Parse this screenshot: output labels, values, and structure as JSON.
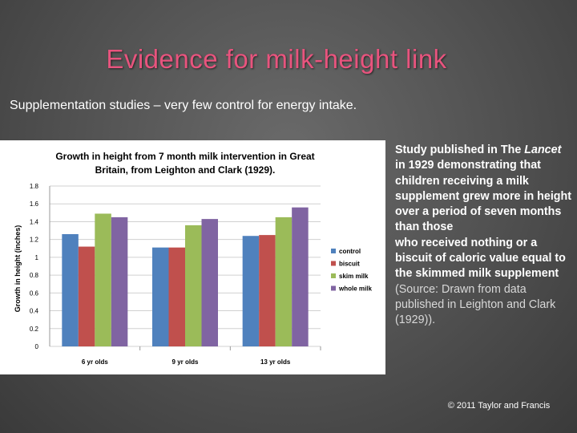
{
  "slide": {
    "title": "Evidence for milk-height link",
    "subtitle": "Supplementation studies – very few control for energy intake.",
    "side_text": {
      "line1": "Study published in The",
      "italic": "Lancet",
      "line2": " in 1929 demonstrating that children receiving a milk supplement grew more in height over a period of seven months than those",
      "line3": "who received nothing or a biscuit of caloric value equal to the skimmed milk supplement",
      "source": "(Source: Drawn from data published in Leighton and Clark (1929))."
    },
    "copyright": "© 2011 Taylor and Francis"
  },
  "chart_data": {
    "type": "bar",
    "title_line1": "Growth in height from 7 month milk intervention in Great",
    "title_line2": "Britain, from Leighton and Clark (1929).",
    "ylabel": "Growth in height (inches)",
    "xlabel": "",
    "categories": [
      "6 yr olds",
      "9 yr olds",
      "13 yr olds"
    ],
    "ylim": [
      0,
      1.8
    ],
    "yticks": [
      "0",
      "0.2",
      "0.4",
      "0.6",
      "0.8",
      "1",
      "1.2",
      "1.4",
      "1.6",
      "1.8"
    ],
    "grid": true,
    "legend_position": "right",
    "series": [
      {
        "name": "control",
        "color": "#4f81bd",
        "values": [
          1.26,
          1.11,
          1.24
        ]
      },
      {
        "name": "biscuit",
        "color": "#c0504d",
        "values": [
          1.12,
          1.11,
          1.25
        ]
      },
      {
        "name": "skim milk",
        "color": "#9bbb59",
        "values": [
          1.49,
          1.36,
          1.45
        ]
      },
      {
        "name": "whole milk",
        "color": "#8064a2",
        "values": [
          1.45,
          1.43,
          1.56
        ]
      }
    ]
  }
}
